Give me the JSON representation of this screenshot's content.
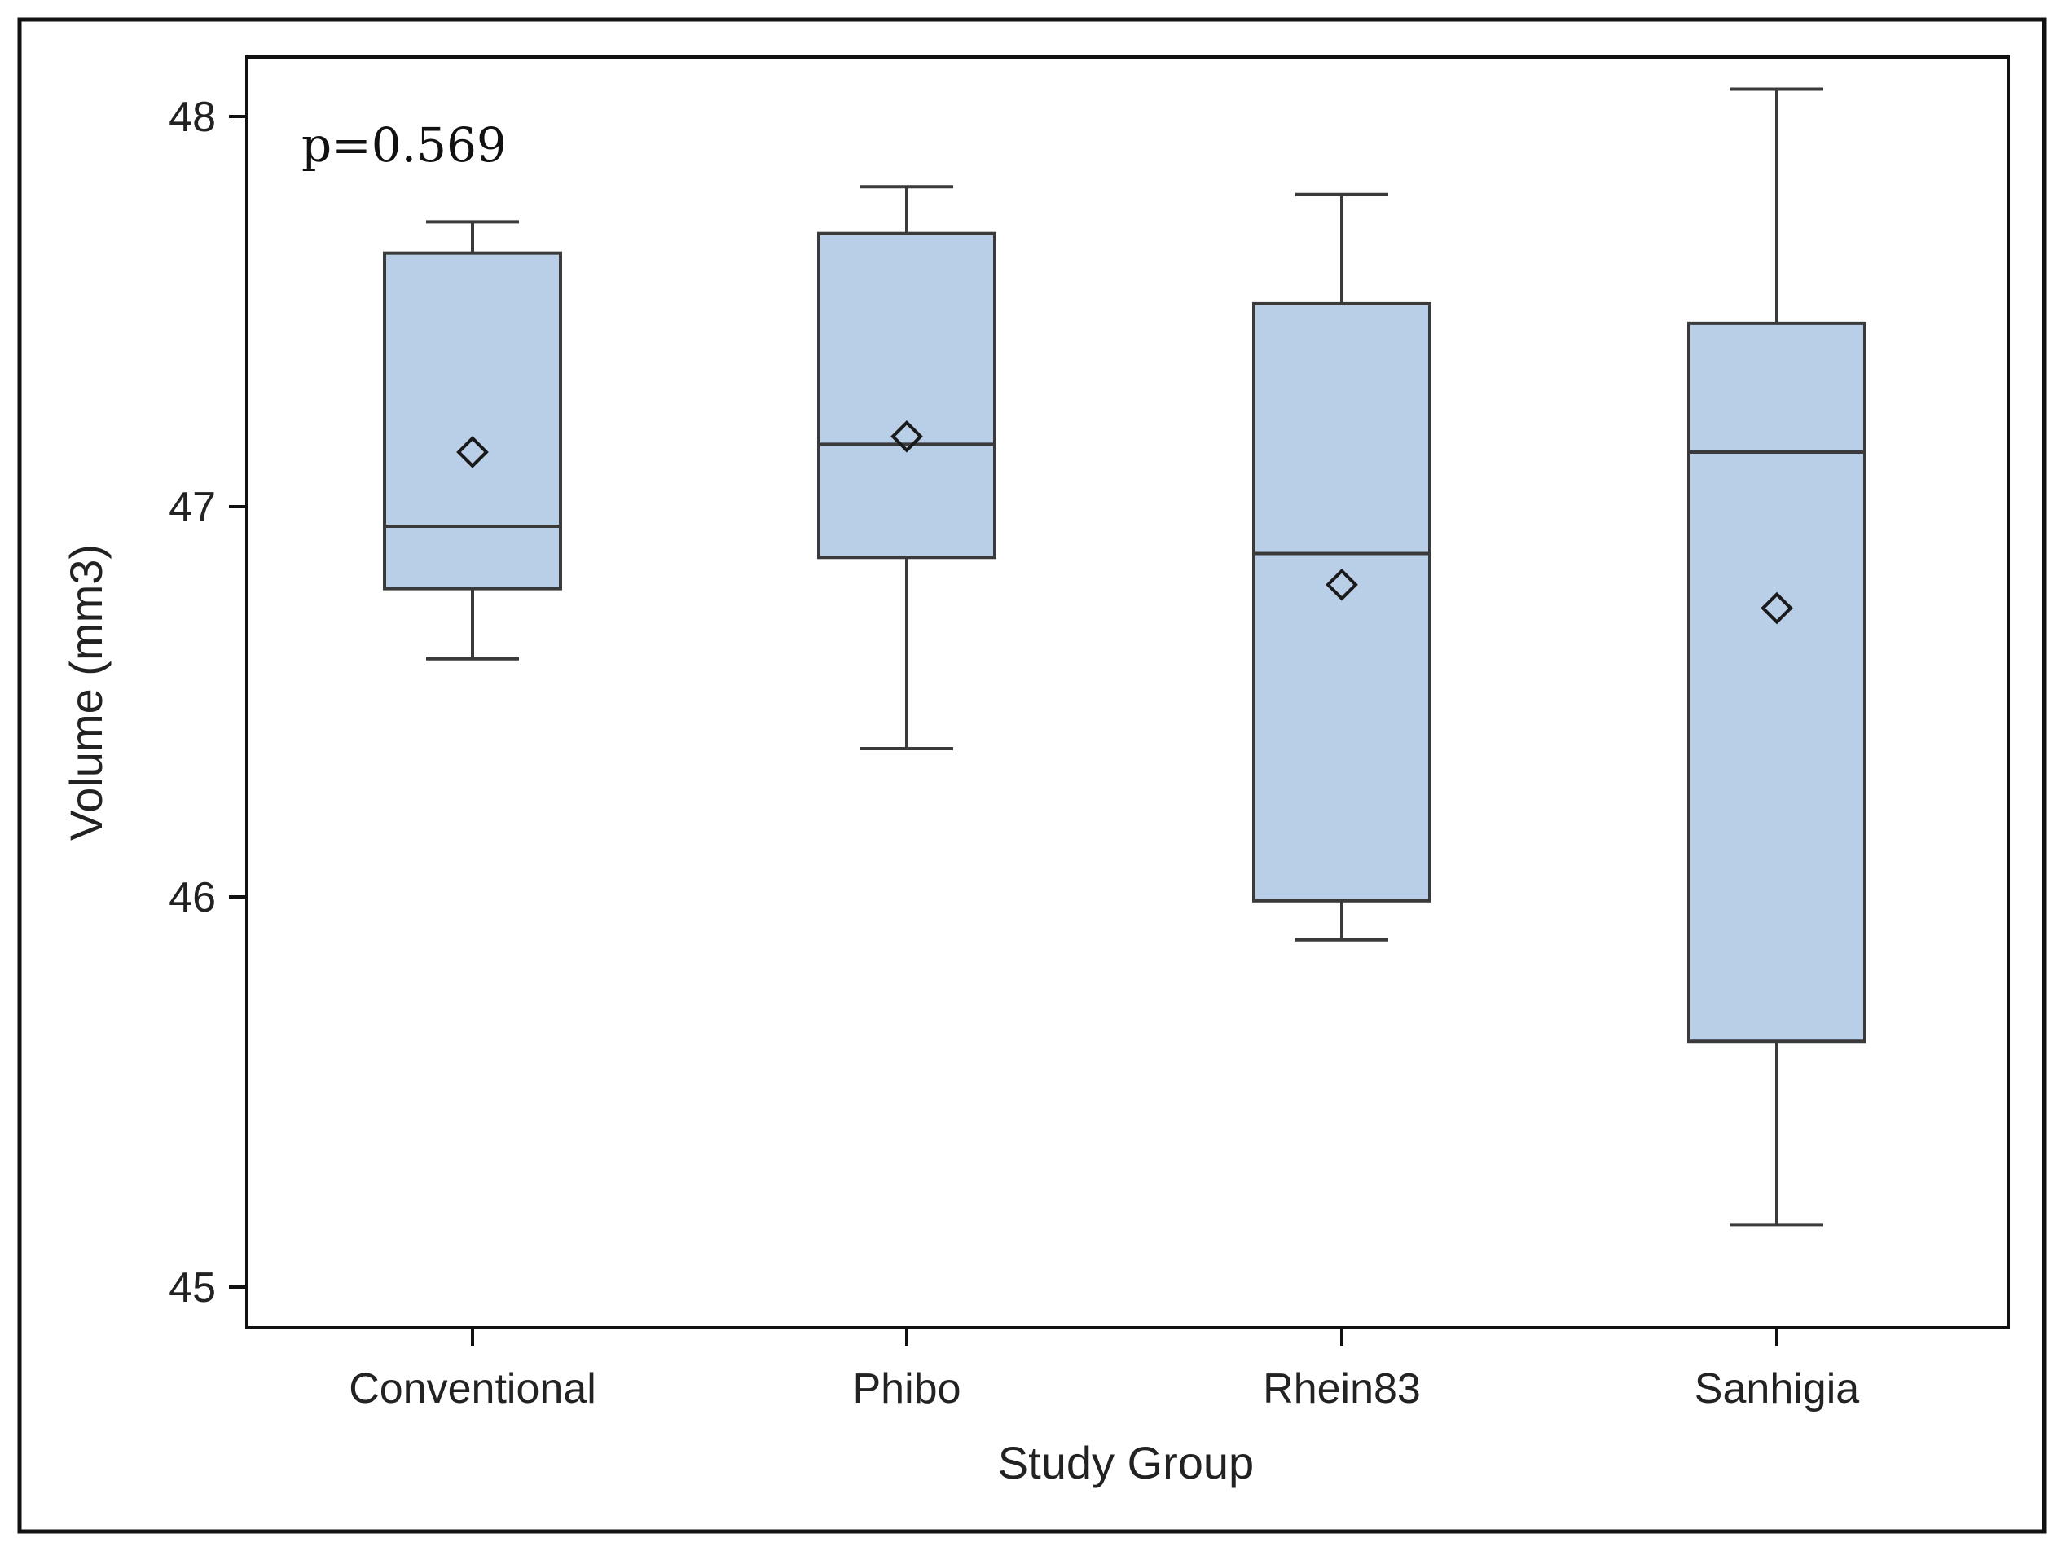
{
  "chart_data": {
    "type": "box",
    "title": "",
    "xlabel": "Study Group",
    "ylabel": "Volume (mm3)",
    "annotation": "p=0.569",
    "ylim": [
      44.9,
      48.15
    ],
    "yticks": [
      45,
      46,
      47,
      48
    ],
    "categories": [
      "Conventional",
      "Phibo",
      "Rhein83",
      "Sanhigia"
    ],
    "boxes": [
      {
        "name": "Conventional",
        "min": 46.61,
        "q1": 46.79,
        "median": 46.95,
        "q3": 47.65,
        "max": 47.73,
        "mean": 47.14
      },
      {
        "name": "Phibo",
        "min": 46.38,
        "q1": 46.87,
        "median": 47.16,
        "q3": 47.7,
        "max": 47.82,
        "mean": 47.18
      },
      {
        "name": "Rhein83",
        "min": 45.89,
        "q1": 45.99,
        "median": 46.88,
        "q3": 47.52,
        "max": 47.8,
        "mean": 46.8
      },
      {
        "name": "Sanhigia",
        "min": 45.16,
        "q1": 45.63,
        "median": 47.14,
        "q3": 47.47,
        "max": 48.07,
        "mean": 46.74
      }
    ],
    "colors": {
      "box_fill": "#b9cfe7",
      "box_stroke": "#3a3a3a",
      "axis": "#111111"
    }
  }
}
